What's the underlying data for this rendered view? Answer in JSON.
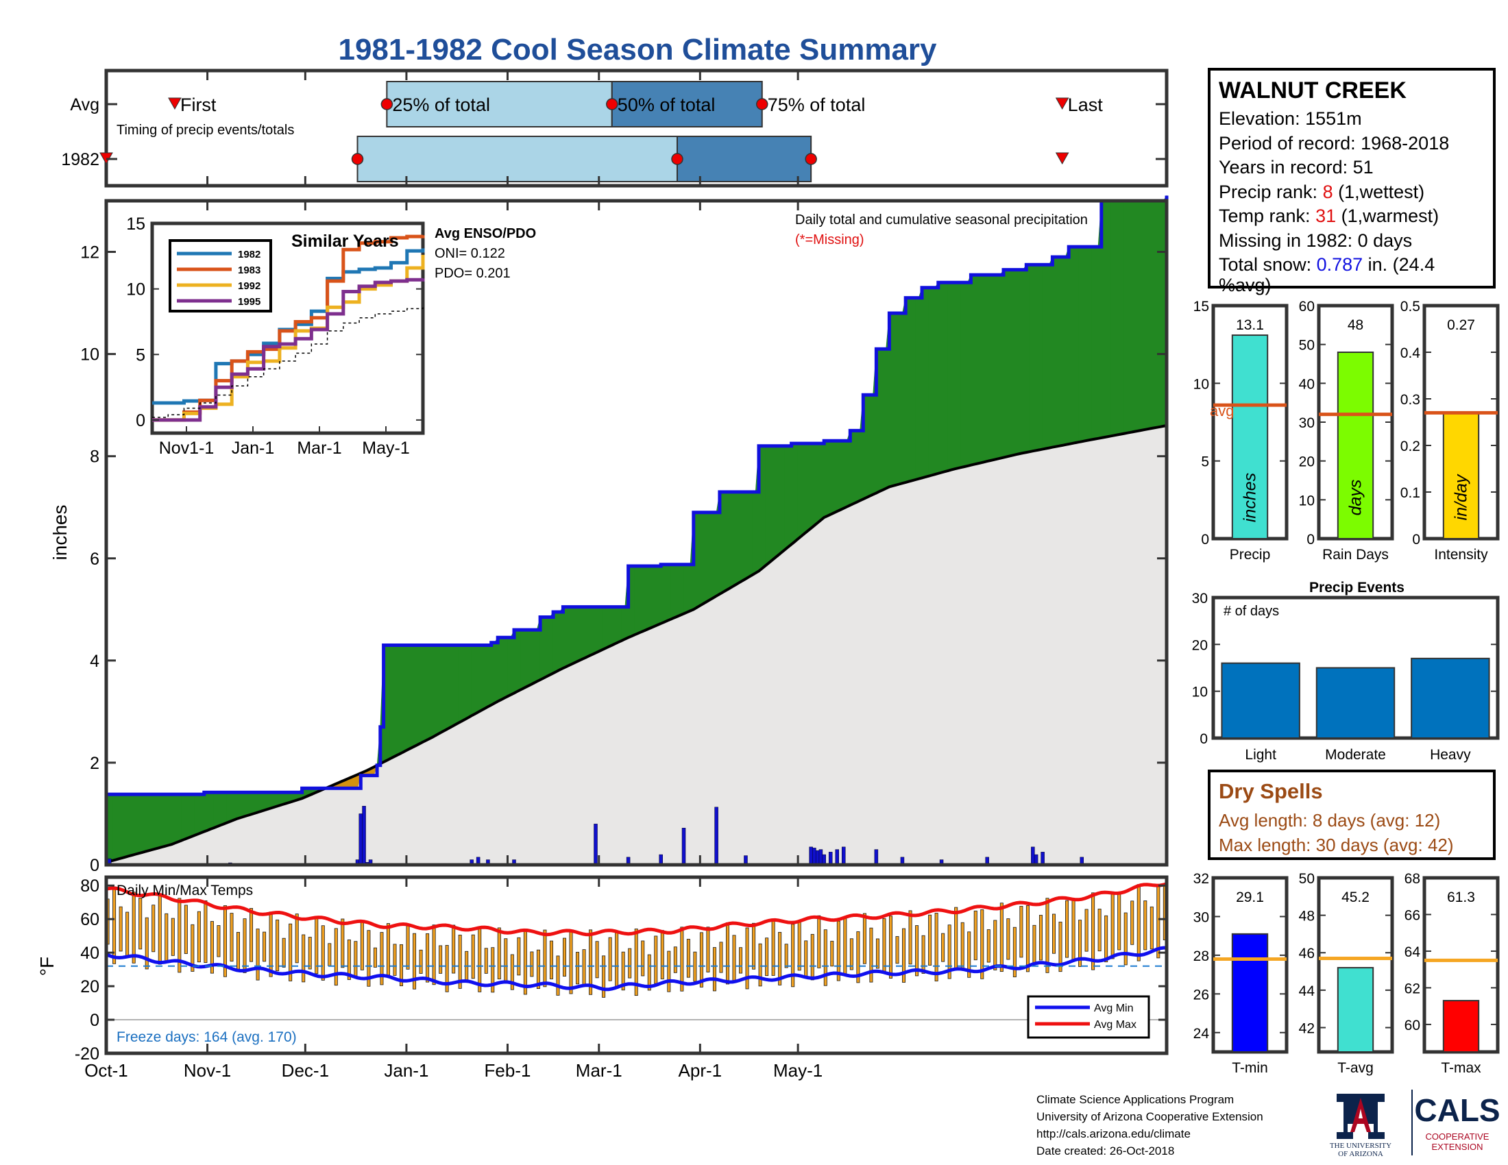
{
  "title": "1981-1982 Cool Season Climate Summary",
  "station": {
    "name": "WALNUT CREEK",
    "elevation": "Elevation: 1551m",
    "period": "Period of record: 1968-2018",
    "years": "Years in record: 51",
    "precip_rank_label": "Precip rank: ",
    "precip_rank_value": "8",
    "precip_rank_suffix": " (1,wettest)",
    "temp_rank_label": "Temp rank: ",
    "temp_rank_value": "31",
    "temp_rank_suffix": " (1,warmest)",
    "missing": "Missing in 1982: 0 days",
    "snow_label": "Total snow: ",
    "snow_value": "0.787",
    "snow_suffix": " in. (24.4",
    "snow_suffix2": "%avg)"
  },
  "timing": {
    "row_labels": [
      "Avg",
      "1982"
    ],
    "caption": "Timing of precip events/totals",
    "marker_labels": [
      "First",
      "25% of total",
      "50% of total",
      "75% of total",
      "Last"
    ],
    "avg_days": {
      "first": 21,
      "p25": 86,
      "p50": 155,
      "p75": 201,
      "last": 293
    },
    "year_days": {
      "first": 0,
      "p25": 77,
      "p50": 175,
      "p75": 216,
      "last": 293
    }
  },
  "main_chart": {
    "ylabel": "inches",
    "title": "Daily total and cumulative seasonal precipitation",
    "missing_note": "(*=Missing)",
    "colors": {
      "cumulative": "#1010dd",
      "surplus": "#228822",
      "deficit": "#d4920e",
      "average": "#000000",
      "fill_avg": "#e8e7e6"
    }
  },
  "chart_data": [
    {
      "type": "area",
      "title": "Daily total and cumulative seasonal precipitation",
      "ylabel": "inches",
      "ylim": [
        0,
        13
      ],
      "yticks": [
        0,
        2,
        4,
        6,
        8,
        10,
        12
      ],
      "x_ticks": [
        "Oct-1",
        "Nov-1",
        "Dec-1",
        "Jan-1",
        "Feb-1",
        "Mar-1",
        "Apr-1",
        "May-1"
      ],
      "series": [
        {
          "name": "1982 cumulative",
          "x_day": [
            0,
            10,
            30,
            60,
            78,
            83,
            84,
            85,
            100,
            115,
            118,
            120,
            125,
            133,
            137,
            140,
            145,
            150,
            160,
            170,
            180,
            188,
            193,
            200,
            210,
            220,
            225,
            228,
            232,
            236,
            240,
            245,
            250,
            255,
            265,
            275,
            282,
            290,
            295,
            305,
            325
          ],
          "values": [
            1.38,
            1.38,
            1.42,
            1.5,
            1.75,
            1.95,
            2.7,
            4.3,
            4.3,
            4.3,
            4.35,
            4.45,
            4.6,
            4.85,
            4.95,
            5.05,
            5.05,
            5.05,
            5.85,
            5.88,
            6.9,
            7.3,
            7.3,
            8.2,
            8.25,
            8.3,
            8.3,
            8.5,
            9.2,
            10.1,
            10.8,
            11.1,
            11.3,
            11.4,
            11.55,
            11.65,
            11.75,
            11.9,
            12.1,
            13.0,
            13.1
          ]
        },
        {
          "name": "Average cumulative",
          "x_day": [
            0,
            20,
            40,
            60,
            80,
            100,
            120,
            140,
            160,
            180,
            200,
            220,
            240,
            260,
            280,
            300,
            325
          ],
          "values": [
            0.05,
            0.4,
            0.9,
            1.3,
            1.85,
            2.5,
            3.2,
            3.85,
            4.45,
            5.0,
            5.75,
            6.8,
            7.4,
            7.75,
            8.05,
            8.3,
            8.6
          ]
        }
      ],
      "daily_bars": {
        "x_day": [
          1,
          38,
          77,
          78,
          79,
          80,
          81,
          112,
          114,
          117,
          125,
          150,
          160,
          170,
          177,
          187,
          196,
          216,
          217,
          218,
          219,
          220,
          222,
          224,
          226,
          236,
          244,
          256,
          270,
          284,
          285,
          287,
          299
        ],
        "values": [
          0.12,
          0.04,
          0.1,
          1.0,
          1.15,
          0.05,
          0.1,
          0.1,
          0.15,
          0.1,
          0.1,
          0.8,
          0.15,
          0.2,
          0.72,
          1.13,
          0.18,
          0.35,
          0.33,
          0.28,
          0.3,
          0.2,
          0.25,
          0.3,
          0.35,
          0.3,
          0.15,
          0.1,
          0.15,
          0.35,
          0.2,
          0.25,
          0.15
        ]
      }
    },
    {
      "type": "line",
      "title": "Similar Years",
      "xticks": [
        "Nov1-1",
        "Jan-1",
        "Mar-1",
        "May-1"
      ],
      "yticks": [
        0,
        5,
        10,
        15
      ],
      "ylim": [
        0,
        15
      ],
      "series": [
        {
          "name": "1982",
          "color": "#1f77b4",
          "values": [
            1.3,
            1.3,
            1.45,
            1.5,
            4.3,
            4.5,
            5.0,
            5.85,
            6.9,
            7.3,
            8.3,
            10.8,
            11.3,
            11.5,
            11.6,
            12.0,
            12.9,
            13.1
          ]
        },
        {
          "name": "1983",
          "color": "#d95319",
          "values": [
            0.0,
            0.0,
            0.6,
            1.5,
            3.0,
            4.5,
            5.2,
            5.4,
            6.8,
            7.5,
            7.8,
            10.6,
            13.0,
            13.5,
            13.6,
            13.9,
            14.0,
            14.1
          ]
        },
        {
          "name": "1992",
          "color": "#edb120",
          "values": [
            0.0,
            0.0,
            0.5,
            0.9,
            1.2,
            3.3,
            4.4,
            4.5,
            5.5,
            6.8,
            7.0,
            8.6,
            9.0,
            10.0,
            10.3,
            10.6,
            11.6,
            12.6
          ]
        },
        {
          "name": "1995",
          "color": "#7e2f8e",
          "values": [
            0.0,
            0.0,
            0.0,
            1.0,
            2.5,
            3.5,
            3.9,
            5.6,
            5.8,
            6.2,
            6.9,
            8.1,
            9.8,
            10.2,
            10.5,
            10.6,
            10.7,
            10.8
          ]
        },
        {
          "name": "Average",
          "color": "#000000",
          "values": [
            0.2,
            0.4,
            0.9,
            1.3,
            1.9,
            2.6,
            3.3,
            3.9,
            4.5,
            5.1,
            5.8,
            6.8,
            7.4,
            7.8,
            8.1,
            8.3,
            8.5,
            8.6
          ]
        }
      ]
    },
    {
      "type": "bar",
      "title": "Precip",
      "categories": [
        "Precip"
      ],
      "values": [
        13.1
      ],
      "ylim": [
        0,
        15
      ],
      "yticks": [
        0,
        5,
        10,
        15
      ],
      "average": 8.6,
      "unit": "inches",
      "color": "#40e0d0"
    },
    {
      "type": "bar",
      "title": "Rain Days",
      "categories": [
        "Rain Days"
      ],
      "values": [
        48
      ],
      "ylim": [
        0,
        60
      ],
      "yticks": [
        0,
        10,
        20,
        30,
        40,
        50,
        60
      ],
      "average": 32,
      "unit": "days",
      "color": "#7cfc00"
    },
    {
      "type": "bar",
      "title": "Intensity",
      "categories": [
        "Intensity"
      ],
      "values": [
        0.27
      ],
      "ylim": [
        0,
        0.5
      ],
      "yticks": [
        0,
        0.1,
        0.2,
        0.3,
        0.4,
        0.5
      ],
      "average": 0.27,
      "unit": "in/day",
      "color": "#ffd700"
    },
    {
      "type": "bar",
      "title": "Precip Events",
      "ylabel": "# of days",
      "categories": [
        "Light",
        "Moderate",
        "Heavy"
      ],
      "values": [
        16,
        15,
        17
      ],
      "ylim": [
        0,
        30
      ],
      "yticks": [
        0,
        10,
        20,
        30
      ],
      "color": "#0072bd"
    },
    {
      "type": "bar",
      "title": "T-min",
      "categories": [
        "T-min"
      ],
      "values": [
        29.1
      ],
      "ylim": [
        23,
        32
      ],
      "yticks": [
        24,
        26,
        28,
        30,
        32
      ],
      "average": 27.8,
      "color": "#0000ff"
    },
    {
      "type": "bar",
      "title": "T-avg",
      "categories": [
        "T-avg"
      ],
      "values": [
        45.2
      ],
      "ylim": [
        40.7,
        50
      ],
      "yticks": [
        42,
        44,
        46,
        48,
        50
      ],
      "average": 45.7,
      "color": "#40e0d0"
    },
    {
      "type": "bar",
      "title": "T-max",
      "categories": [
        "T-max"
      ],
      "values": [
        61.3
      ],
      "ylim": [
        58.5,
        68
      ],
      "yticks": [
        60,
        62,
        64,
        66,
        68
      ],
      "average": 63.5,
      "color": "#ff0000"
    }
  ],
  "similar": {
    "title": "Similar Years",
    "legend": [
      "1982",
      "1983",
      "1992",
      "1995"
    ],
    "enso_title": "Avg ENSO/PDO",
    "oni": "ONI= 0.122",
    "pdo": "PDO= 0.201"
  },
  "temps": {
    "title": "Daily Min/Max Temps",
    "ylabel": "°F",
    "yticks": [
      "80",
      "60",
      "40",
      "20",
      "0",
      "-20"
    ],
    "freeze_days": "Freeze days: 164 (avg. 170)",
    "legend_min": "Avg Min",
    "legend_max": "Avg Max",
    "avg_max": [
      78,
      72,
      65,
      60,
      56,
      55,
      52,
      52,
      53,
      57,
      60,
      62,
      65,
      69,
      74,
      82
    ],
    "avg_min": [
      39,
      34,
      30,
      27,
      25,
      22,
      21,
      19,
      22,
      24,
      26,
      28,
      29,
      32,
      36,
      42
    ]
  },
  "x_axis": {
    "ticks": [
      "Oct-1",
      "Nov-1",
      "Dec-1",
      "Jan-1",
      "Feb-1",
      "Mar-1",
      "Apr-1",
      "May-1"
    ],
    "tick_days": [
      0,
      31,
      61,
      92,
      123,
      151,
      182,
      212
    ],
    "total_days": 242
  },
  "small_labels": {
    "precip": "Precip",
    "rain_days": "Rain Days",
    "intensity": "Intensity",
    "precip_val": "13.1",
    "rain_days_val": "48",
    "intensity_val": "0.27",
    "inches": "inches",
    "days": "days",
    "in_day": "in/day",
    "avg": "avg",
    "tmin": "T-min",
    "tavg": "T-avg",
    "tmax": "T-max",
    "tmin_val": "29.1",
    "tavg_val": "45.2",
    "tmax_val": "61.3"
  },
  "events": {
    "title": "Precip Events",
    "ylabel": "# of days"
  },
  "dry_spells": {
    "title": "Dry Spells",
    "avg": "Avg length: 8 days (avg: 12)",
    "max": "Max length: 30 days (avg: 42)"
  },
  "credits": {
    "line1": "Climate Science Applications Program",
    "line2": "University of Arizona Cooperative Extension",
    "line3": "http://cals.arizona.edu/climate",
    "line4": " Date created: 26-Oct-2018"
  },
  "logos": {
    "ua_line1": "THE UNIVERSITY",
    "ua_line2": "OF ARIZONA",
    "cals": "CALS",
    "cals_line1": "COOPERATIVE",
    "cals_line2": "EXTENSION"
  }
}
